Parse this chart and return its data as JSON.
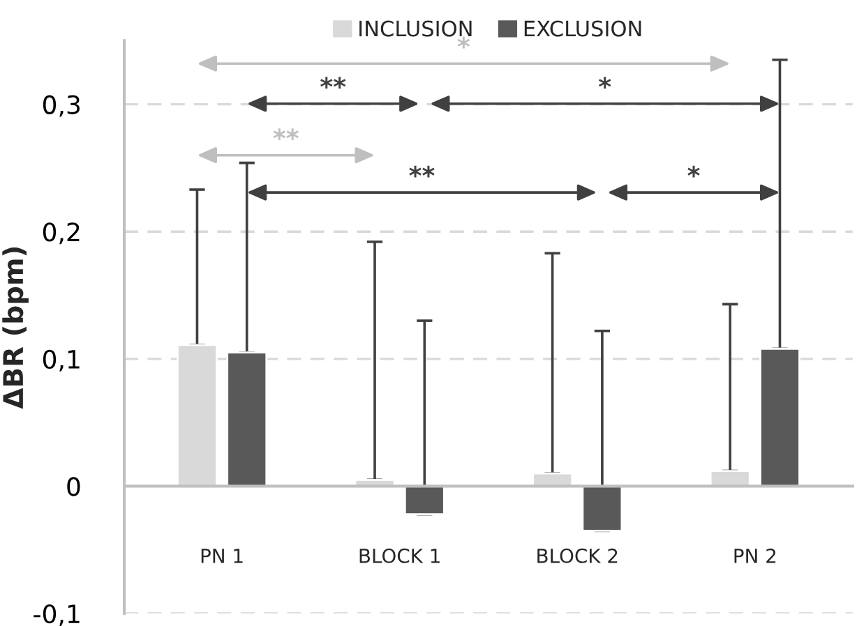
{
  "chart_data": {
    "type": "bar",
    "ylabel": "ΔBR (bpm)",
    "categories": [
      "PN 1",
      "BLOCK 1",
      "BLOCK 2",
      "PN 2"
    ],
    "series": [
      {
        "name": "INCLUSION",
        "color": "#d9d9d9",
        "values": [
          0.111,
          0.005,
          0.01,
          0.012
        ],
        "errors": [
          [
            0.111,
            0.233
          ],
          [
            0.005,
            0.192
          ],
          [
            0.01,
            0.183
          ],
          [
            0.012,
            0.143
          ]
        ]
      },
      {
        "name": "EXCLUSION",
        "color": "#595959",
        "values": [
          0.105,
          -0.022,
          -0.035,
          0.108
        ],
        "errors": [
          [
            0.105,
            0.254
          ],
          [
            -0.022,
            0.13
          ],
          [
            -0.035,
            0.122
          ],
          [
            0.108,
            0.335
          ]
        ]
      }
    ],
    "ylim": [
      -0.1,
      0.35
    ],
    "yticks": [
      {
        "value": -0.1,
        "label": "-0,1"
      },
      {
        "value": 0,
        "label": "0"
      },
      {
        "value": 0.1,
        "label": "0,1"
      },
      {
        "value": 0.2,
        "label": "0,2"
      },
      {
        "value": 0.3,
        "label": "0,3"
      }
    ],
    "grid": "y",
    "legend": "top",
    "annotations": [
      "*",
      "**",
      "**",
      "*",
      "**",
      "*"
    ]
  }
}
